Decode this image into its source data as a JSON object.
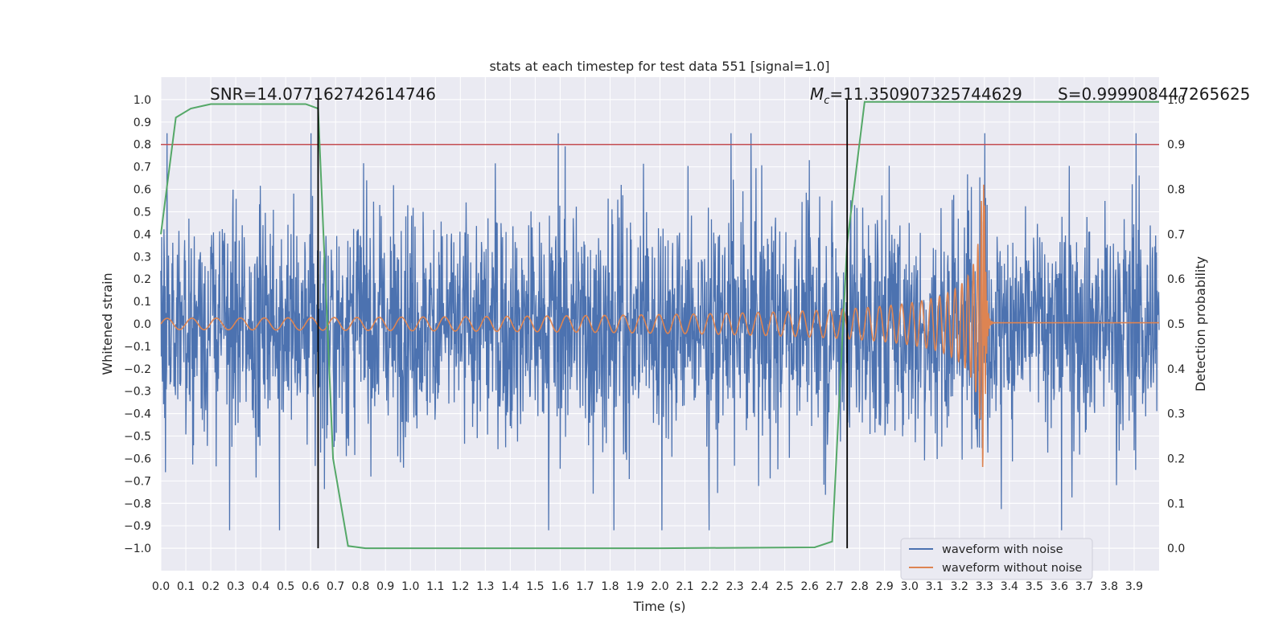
{
  "chart_data": {
    "type": "line",
    "title": "stats at each timestep for test data 551 [signal=1.0]",
    "xlabel": "Time (s)",
    "ylabel": "Whitened strain",
    "ylabel_right": "Detection probability",
    "xlim": [
      0.0,
      4.0
    ],
    "ylim": [
      -1.1,
      1.1
    ],
    "ylim_right": [
      -0.05,
      1.05
    ],
    "x_ticks": [
      "0.0",
      "0.1",
      "0.2",
      "0.3",
      "0.4",
      "0.5",
      "0.6",
      "0.7",
      "0.8",
      "0.9",
      "1.0",
      "1.1",
      "1.2",
      "1.3",
      "1.4",
      "1.5",
      "1.6",
      "1.7",
      "1.8",
      "1.9",
      "2.0",
      "2.1",
      "2.2",
      "2.3",
      "2.4",
      "2.5",
      "2.6",
      "2.7",
      "2.8",
      "2.9",
      "3.0",
      "3.1",
      "3.2",
      "3.3",
      "3.4",
      "3.5",
      "3.6",
      "3.7",
      "3.8",
      "3.9"
    ],
    "y_ticks": [
      "1.0",
      "0.9",
      "0.8",
      "0.7",
      "0.6",
      "0.5",
      "0.4",
      "0.3",
      "0.2",
      "0.1",
      "0.0",
      "-0.1",
      "-0.2",
      "-0.3",
      "-0.4",
      "-0.5",
      "-0.6",
      "-0.7",
      "-0.8",
      "-0.9",
      "-1.0"
    ],
    "y_ticks_right": [
      "1.0",
      "0.9",
      "0.8",
      "0.7",
      "0.6",
      "0.5",
      "0.4",
      "0.3",
      "0.2",
      "0.1",
      "0.0"
    ],
    "grid": true,
    "legend": {
      "placement": "lower-right",
      "entries": [
        {
          "label": "waveform with noise",
          "color": "#4c72b0"
        },
        {
          "label": "waveform without noise",
          "color": "#dd8452"
        }
      ]
    },
    "annotations": {
      "snr": "SNR=14.077162742614746",
      "mc_symbol": "M",
      "mc_sub": "c",
      "mc_value": "=11.350907325744629",
      "score": "S=0.999908447265625"
    },
    "series": [
      {
        "name": "waveform with noise",
        "color": "#4c72b0",
        "description": "whitened noisy strain, roughly spanning -0.9 to 0.85",
        "amplitude": 0.85
      },
      {
        "name": "waveform without noise",
        "color": "#dd8452",
        "chirp": {
          "start": 0.0,
          "merger": 3.3,
          "f_start": 10,
          "f_end": 60,
          "amp_start": 0.025,
          "amp_peak": 0.65,
          "amp_min_peak": -0.56,
          "ringdown_level": 0.005
        }
      },
      {
        "name": "detection probability",
        "color": "#55a868",
        "axis": "right",
        "x": [
          0.0,
          0.06,
          0.12,
          0.2,
          0.3,
          0.45,
          0.58,
          0.63,
          0.69,
          0.75,
          0.82,
          1.0,
          2.0,
          2.62,
          2.69,
          2.75,
          2.82,
          3.0,
          4.0
        ],
        "y": [
          0.7,
          0.96,
          0.98,
          0.99,
          0.99,
          0.99,
          0.99,
          0.98,
          0.2,
          0.005,
          0.0,
          0.0,
          0.0,
          0.002,
          0.015,
          0.68,
          0.995,
          0.995,
          0.995
        ]
      },
      {
        "name": "threshold",
        "color": "#c44e52",
        "axis": "right",
        "value": 0.9
      }
    ],
    "vertical_markers": [
      0.63,
      2.75
    ]
  }
}
